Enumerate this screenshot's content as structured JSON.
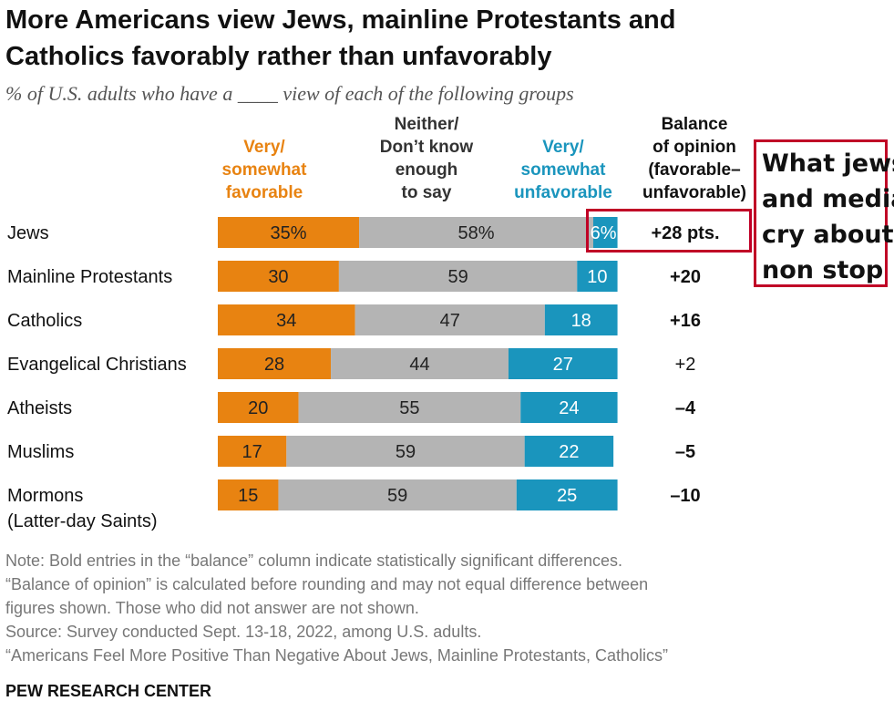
{
  "title_line1": "More Americans view Jews, mainline Protestants and",
  "title_line2": "Catholics favorably rather than unfavorably",
  "subtitle": "% of U.S. adults who have a ____ view of each of the following groups",
  "columns": {
    "favorable": [
      "Very/",
      "somewhat",
      "favorable"
    ],
    "neither": [
      "Neither/",
      "Don’t know",
      "enough",
      "to say"
    ],
    "unfavorable": [
      "Very/",
      "somewhat",
      "unfavorable"
    ],
    "balance": [
      "Balance",
      "of opinion",
      "(favorable–",
      "unfavorable)"
    ]
  },
  "colors": {
    "favorable": "#e88311",
    "neither": "#b4b4b4",
    "unfavorable": "#1a95bd",
    "annotation": "#c00026"
  },
  "chart_data": {
    "type": "bar",
    "stacked": true,
    "orientation": "horizontal",
    "categories": [
      [
        "Jews"
      ],
      [
        "Mainline Protestants"
      ],
      [
        "Catholics"
      ],
      [
        "Evangelical Christians"
      ],
      [
        "Atheists"
      ],
      [
        "Muslims"
      ],
      [
        "Mormons",
        "(Latter-day Saints)"
      ]
    ],
    "series": [
      {
        "key": "favorable",
        "values": [
          35,
          30,
          34,
          28,
          20,
          17,
          15
        ],
        "labels": [
          "35%",
          "30",
          "34",
          "28",
          "20",
          "17",
          "15"
        ]
      },
      {
        "key": "neither",
        "values": [
          58,
          59,
          47,
          44,
          55,
          59,
          59
        ],
        "labels": [
          "58%",
          "59",
          "47",
          "44",
          "55",
          "59",
          "59"
        ]
      },
      {
        "key": "unfavorable",
        "values": [
          6,
          10,
          18,
          27,
          24,
          22,
          25
        ],
        "labels": [
          "6%",
          "10",
          "18",
          "27",
          "24",
          "22",
          "25"
        ]
      }
    ],
    "balance": [
      "+28 pts.",
      "+20",
      "+16",
      "+2",
      "–4",
      "–5",
      "–10"
    ],
    "balance_bold": [
      true,
      true,
      true,
      false,
      true,
      true,
      true
    ],
    "xlim": [
      0,
      100
    ]
  },
  "note_lines": [
    "Note: Bold entries in the “balance” column indicate statistically significant differences.",
    "“Balance of opinion” is calculated before rounding and may not equal difference between",
    "figures shown. Those who did not answer are not shown.",
    "Source: Survey conducted Sept. 13-18, 2022, among U.S. adults.",
    "“Americans Feel More Positive Than Negative About Jews, Mainline Protestants, Catholics”"
  ],
  "source_name": "PEW RESEARCH CENTER",
  "annotation_lines": [
    "What jews",
    "and media",
    "cry about",
    "non stop"
  ]
}
